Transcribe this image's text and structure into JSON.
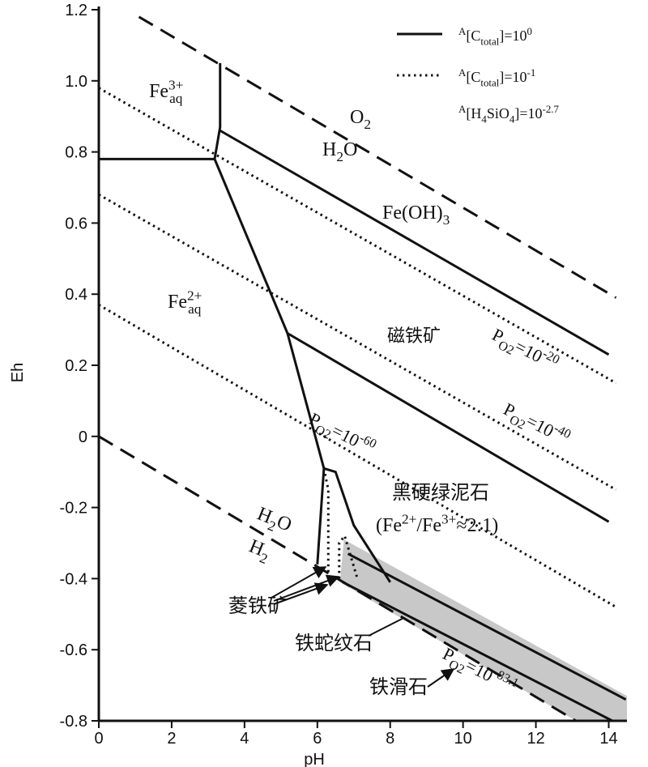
{
  "chart_data": {
    "type": "line",
    "xlabel": "pH",
    "ylabel": "Eh",
    "xlim": [
      0,
      14.5
    ],
    "ylim": [
      -0.8,
      1.2
    ],
    "xticks": [
      0,
      2,
      4,
      6,
      8,
      10,
      12,
      14
    ],
    "yticks": [
      1.2,
      {
        "value": 1,
        "label": "1.0"
      },
      0.8,
      0.6,
      0.4,
      0.2,
      0,
      -0.2,
      -0.4,
      -0.6,
      -0.8
    ],
    "region": {
      "x": [
        6.73,
        14.5,
        14.5,
        13.1,
        6.62
      ],
      "y": [
        -0.29,
        -0.73,
        -0.8,
        -0.8,
        -0.41
      ],
      "color": "#c8c8c8"
    },
    "series": [
      {
        "style": "dashed",
        "x": [
          1.1,
          14.2
        ],
        "y": [
          1.18,
          0.39
        ]
      },
      {
        "style": "dashed",
        "x": [
          0,
          13.1
        ],
        "y": [
          0,
          -0.8
        ]
      },
      {
        "style": "solid",
        "x": [
          0,
          3.18
        ],
        "y": [
          0.78,
          0.78
        ]
      },
      {
        "style": "solid",
        "x": [
          3.33,
          3.33,
          3.18
        ],
        "y": [
          1.05,
          0.87,
          0.78
        ]
      },
      {
        "style": "solid",
        "x": [
          3.33,
          14
        ],
        "y": [
          0.86,
          0.23
        ]
      },
      {
        "style": "solid",
        "x": [
          3.18,
          5.18,
          6.18
        ],
        "y": [
          0.78,
          0.29,
          -0.09
        ]
      },
      {
        "style": "solid",
        "x": [
          5.18,
          14
        ],
        "y": [
          0.29,
          -0.24
        ]
      },
      {
        "style": "solid",
        "x": [
          6.0,
          6.18,
          6.5,
          7.0,
          8.0
        ],
        "y": [
          -0.36,
          -0.09,
          -0.1,
          -0.25,
          -0.41
        ]
      },
      {
        "style": "solid",
        "x": [
          6.84,
          14.47
        ],
        "y": [
          -0.33,
          -0.74
        ]
      },
      {
        "style": "solid",
        "x": [
          6.7,
          14.1
        ],
        "y": [
          -0.41,
          -0.8
        ]
      },
      {
        "style": "dotted",
        "x": [
          0,
          14.2
        ],
        "y": [
          0.98,
          0.15
        ]
      },
      {
        "style": "dotted",
        "x": [
          0,
          14.2
        ],
        "y": [
          0.68,
          -0.15
        ]
      },
      {
        "style": "dotted",
        "x": [
          0,
          14.2
        ],
        "y": [
          0.37,
          -0.48
        ]
      },
      {
        "style": "dotted",
        "x": [
          6.18,
          6.3,
          6.3
        ],
        "y": [
          -0.09,
          -0.15,
          -0.4
        ]
      },
      {
        "style": "dotted",
        "x": [
          6.6,
          6.6,
          6.75,
          7.1
        ],
        "y": [
          -0.4,
          -0.3,
          -0.28,
          -0.4
        ]
      }
    ],
    "legend": [
      {
        "style": "solid",
        "parts": [
          {
            "text": "A",
            "pos": "sup"
          },
          {
            "text": "[C"
          },
          {
            "text": "total",
            "pos": "sub"
          },
          {
            "text": "]=10"
          },
          {
            "text": "0",
            "pos": "sup"
          }
        ]
      },
      {
        "style": "dotted",
        "parts": [
          {
            "text": "A",
            "pos": "sup"
          },
          {
            "text": "[C"
          },
          {
            "text": "total",
            "pos": "sub"
          },
          {
            "text": "]=10"
          },
          {
            "text": "-1",
            "pos": "sup"
          }
        ]
      },
      {
        "parts": [
          {
            "text": "A",
            "pos": "sup"
          },
          {
            "text": "[H"
          },
          {
            "text": "4",
            "pos": "sub"
          },
          {
            "text": "SiO"
          },
          {
            "text": "4",
            "pos": "sub"
          },
          {
            "text": "]=10"
          },
          {
            "text": "-2.7",
            "pos": "sup"
          }
        ]
      }
    ],
    "annotations": [
      {
        "parts": [
          {
            "text": "O"
          },
          {
            "text": "2",
            "pos": "sub"
          }
        ]
      },
      {
        "parts": [
          {
            "text": "H"
          },
          {
            "text": "2",
            "pos": "sub"
          },
          {
            "text": "O"
          }
        ]
      },
      {
        "parts": [
          {
            "text": "Fe"
          },
          {
            "text": "3+",
            "pos": "sup"
          },
          {
            "text": "aq",
            "pos": "subback"
          }
        ]
      },
      {
        "parts": [
          {
            "text": "Fe(OH)"
          },
          {
            "text": "3",
            "pos": "sub"
          }
        ]
      },
      {
        "parts": [
          {
            "text": "Fe"
          },
          {
            "text": "2+",
            "pos": "sup"
          },
          {
            "text": "aq",
            "pos": "subback"
          }
        ]
      },
      {
        "parts": [
          {
            "text": "磁铁矿"
          }
        ]
      },
      {
        "parts": [
          {
            "text": "P"
          },
          {
            "text": "O2",
            "pos": "sub"
          },
          {
            "text": "=10"
          },
          {
            "text": "-20",
            "pos": "sup"
          }
        ]
      },
      {
        "parts": [
          {
            "text": "P"
          },
          {
            "text": "O2",
            "pos": "sub"
          },
          {
            "text": "=10"
          },
          {
            "text": "-40",
            "pos": "sup"
          }
        ]
      },
      {
        "parts": [
          {
            "text": "P"
          },
          {
            "text": "O2",
            "pos": "sub"
          },
          {
            "text": "=10"
          },
          {
            "text": "-60",
            "pos": "sup"
          }
        ]
      },
      {
        "parts": [
          {
            "text": "黑硬绿泥石"
          }
        ]
      },
      {
        "parts": [
          {
            "text": "(Fe"
          },
          {
            "text": "2+",
            "pos": "sup"
          },
          {
            "text": "/Fe"
          },
          {
            "text": "3+",
            "pos": "sup"
          },
          {
            "text": "≈2:1)"
          }
        ]
      },
      {
        "parts": [
          {
            "text": "H"
          },
          {
            "text": "2",
            "pos": "sub"
          },
          {
            "text": "O"
          }
        ]
      },
      {
        "parts": [
          {
            "text": "H"
          },
          {
            "text": "2",
            "pos": "sub"
          }
        ]
      },
      {
        "parts": [
          {
            "text": "菱铁矿"
          }
        ]
      },
      {
        "parts": [
          {
            "text": "铁蛇纹石"
          }
        ]
      },
      {
        "parts": [
          {
            "text": "铁滑石"
          }
        ]
      },
      {
        "parts": [
          {
            "text": "P"
          },
          {
            "text": "O2",
            "pos": "sub"
          },
          {
            "text": "=10"
          },
          {
            "text": "-83.1",
            "pos": "sup"
          }
        ]
      }
    ]
  }
}
